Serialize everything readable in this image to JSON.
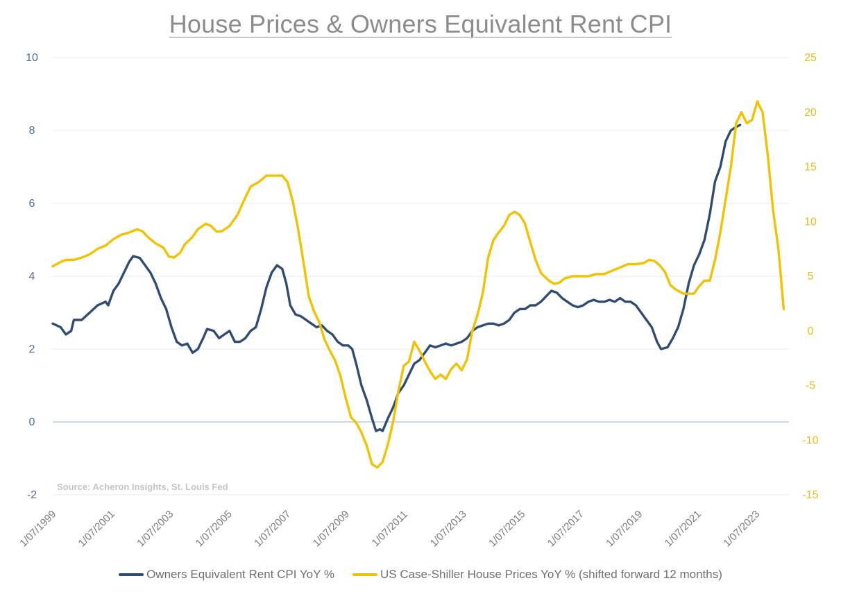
{
  "chart_data": {
    "type": "line",
    "title": "House Prices & Owners Equivalent Rent CPI",
    "source_note": "Source: Acheron Insights, St. Louis Fed",
    "x_range": [
      "1999-07-01",
      "2024-07-01"
    ],
    "x_tick_labels": [
      "1/07/1999",
      "1/07/2001",
      "1/07/2003",
      "1/07/2005",
      "1/07/2007",
      "1/07/2009",
      "1/07/2011",
      "1/07/2013",
      "1/07/2015",
      "1/07/2017",
      "1/07/2019",
      "1/07/2021",
      "1/07/2023"
    ],
    "y_left": {
      "range": [
        -2,
        10
      ],
      "ticks": [
        -2,
        0,
        2,
        4,
        6,
        8,
        10
      ]
    },
    "y_right": {
      "range": [
        -15,
        25
      ],
      "ticks": [
        -15,
        -10,
        -5,
        0,
        5,
        10,
        15,
        20,
        25
      ]
    },
    "grid": "horizontal",
    "legend_position": "bottom",
    "series": [
      {
        "name": "Owners Equivalent Rent CPI YoY %",
        "axis": "left",
        "color": "#2f4c73",
        "points": [
          [
            1999.5,
            2.7
          ],
          [
            1999.8,
            2.6
          ],
          [
            2000.0,
            2.4
          ],
          [
            2000.2,
            2.5
          ],
          [
            2000.3,
            2.8
          ],
          [
            2000.6,
            2.8
          ],
          [
            2000.9,
            3.0
          ],
          [
            2001.2,
            3.2
          ],
          [
            2001.5,
            3.3
          ],
          [
            2001.6,
            3.2
          ],
          [
            2001.8,
            3.6
          ],
          [
            2002.0,
            3.8
          ],
          [
            2002.2,
            4.1
          ],
          [
            2002.4,
            4.4
          ],
          [
            2002.55,
            4.55
          ],
          [
            2002.8,
            4.5
          ],
          [
            2003.0,
            4.3
          ],
          [
            2003.2,
            4.1
          ],
          [
            2003.4,
            3.8
          ],
          [
            2003.6,
            3.4
          ],
          [
            2003.8,
            3.1
          ],
          [
            2004.0,
            2.6
          ],
          [
            2004.2,
            2.2
          ],
          [
            2004.4,
            2.1
          ],
          [
            2004.6,
            2.15
          ],
          [
            2004.8,
            1.9
          ],
          [
            2005.0,
            2.0
          ],
          [
            2005.2,
            2.3
          ],
          [
            2005.35,
            2.55
          ],
          [
            2005.6,
            2.5
          ],
          [
            2005.8,
            2.3
          ],
          [
            2006.0,
            2.4
          ],
          [
            2006.2,
            2.5
          ],
          [
            2006.4,
            2.2
          ],
          [
            2006.6,
            2.2
          ],
          [
            2006.8,
            2.3
          ],
          [
            2007.0,
            2.5
          ],
          [
            2007.2,
            2.6
          ],
          [
            2007.4,
            3.1
          ],
          [
            2007.6,
            3.7
          ],
          [
            2007.8,
            4.1
          ],
          [
            2008.0,
            4.3
          ],
          [
            2008.2,
            4.2
          ],
          [
            2008.35,
            3.8
          ],
          [
            2008.5,
            3.2
          ],
          [
            2008.7,
            2.95
          ],
          [
            2008.9,
            2.9
          ],
          [
            2009.1,
            2.8
          ],
          [
            2009.3,
            2.7
          ],
          [
            2009.5,
            2.6
          ],
          [
            2009.7,
            2.65
          ],
          [
            2009.9,
            2.5
          ],
          [
            2010.1,
            2.4
          ],
          [
            2010.3,
            2.2
          ],
          [
            2010.5,
            2.1
          ],
          [
            2010.7,
            2.1
          ],
          [
            2010.85,
            2.0
          ],
          [
            2011.0,
            1.6
          ],
          [
            2011.2,
            1.0
          ],
          [
            2011.4,
            0.6
          ],
          [
            2011.6,
            0.1
          ],
          [
            2011.75,
            -0.25
          ],
          [
            2011.9,
            -0.2
          ],
          [
            2012.0,
            -0.25
          ],
          [
            2012.2,
            0.1
          ],
          [
            2012.4,
            0.4
          ],
          [
            2012.6,
            0.8
          ],
          [
            2012.8,
            1.0
          ],
          [
            2013.0,
            1.3
          ],
          [
            2013.2,
            1.6
          ],
          [
            2013.4,
            1.7
          ],
          [
            2013.6,
            1.9
          ],
          [
            2013.8,
            2.1
          ],
          [
            2014.0,
            2.05
          ],
          [
            2014.2,
            2.1
          ],
          [
            2014.4,
            2.15
          ],
          [
            2014.6,
            2.1
          ],
          [
            2014.8,
            2.15
          ],
          [
            2015.0,
            2.2
          ],
          [
            2015.2,
            2.3
          ],
          [
            2015.4,
            2.5
          ],
          [
            2015.6,
            2.6
          ],
          [
            2015.8,
            2.65
          ],
          [
            2016.0,
            2.7
          ],
          [
            2016.2,
            2.7
          ],
          [
            2016.4,
            2.65
          ],
          [
            2016.6,
            2.7
          ],
          [
            2016.8,
            2.8
          ],
          [
            2017.0,
            3.0
          ],
          [
            2017.2,
            3.1
          ],
          [
            2017.4,
            3.1
          ],
          [
            2017.6,
            3.2
          ],
          [
            2017.8,
            3.2
          ],
          [
            2018.0,
            3.3
          ],
          [
            2018.2,
            3.45
          ],
          [
            2018.4,
            3.6
          ],
          [
            2018.6,
            3.55
          ],
          [
            2018.8,
            3.4
          ],
          [
            2019.0,
            3.3
          ],
          [
            2019.2,
            3.2
          ],
          [
            2019.4,
            3.15
          ],
          [
            2019.6,
            3.2
          ],
          [
            2019.8,
            3.3
          ],
          [
            2020.0,
            3.35
          ],
          [
            2020.2,
            3.3
          ],
          [
            2020.4,
            3.3
          ],
          [
            2020.6,
            3.35
          ],
          [
            2020.8,
            3.3
          ],
          [
            2021.0,
            3.4
          ],
          [
            2021.2,
            3.3
          ],
          [
            2021.4,
            3.3
          ],
          [
            2021.6,
            3.2
          ],
          [
            2021.8,
            3.0
          ],
          [
            2022.0,
            2.8
          ],
          [
            2022.2,
            2.6
          ],
          [
            2022.4,
            2.2
          ],
          [
            2022.55,
            2.0
          ],
          [
            2022.8,
            2.05
          ],
          [
            2023.0,
            2.3
          ],
          [
            2023.2,
            2.6
          ],
          [
            2023.4,
            3.1
          ],
          [
            2023.6,
            3.8
          ],
          [
            2023.8,
            4.3
          ],
          [
            2024.0,
            4.6
          ],
          [
            2024.2,
            5.0
          ],
          [
            2024.4,
            5.7
          ],
          [
            2024.6,
            6.6
          ],
          [
            2024.8,
            7.0
          ],
          [
            2025.0,
            7.7
          ],
          [
            2025.2,
            8.0
          ],
          [
            2025.4,
            8.1
          ],
          [
            2025.55,
            8.15
          ]
        ]
      },
      {
        "name": "US Case-Shiller House Prices YoY % (shifted forward 12 months)",
        "axis": "right",
        "color": "#f2c200",
        "points": [
          [
            1999.5,
            5.9
          ],
          [
            1999.8,
            6.3
          ],
          [
            2000.0,
            6.5
          ],
          [
            2000.3,
            6.5
          ],
          [
            2000.6,
            6.7
          ],
          [
            2000.9,
            7.0
          ],
          [
            2001.2,
            7.5
          ],
          [
            2001.5,
            7.8
          ],
          [
            2001.8,
            8.4
          ],
          [
            2002.1,
            8.8
          ],
          [
            2002.4,
            9.0
          ],
          [
            2002.7,
            9.3
          ],
          [
            2002.9,
            9.1
          ],
          [
            2003.1,
            8.6
          ],
          [
            2003.4,
            8.0
          ],
          [
            2003.7,
            7.6
          ],
          [
            2003.9,
            6.8
          ],
          [
            2004.1,
            6.7
          ],
          [
            2004.35,
            7.2
          ],
          [
            2004.5,
            7.9
          ],
          [
            2004.8,
            8.6
          ],
          [
            2005.0,
            9.3
          ],
          [
            2005.3,
            9.8
          ],
          [
            2005.5,
            9.6
          ],
          [
            2005.7,
            9.1
          ],
          [
            2005.9,
            9.1
          ],
          [
            2006.2,
            9.6
          ],
          [
            2006.5,
            10.6
          ],
          [
            2006.8,
            12.2
          ],
          [
            2007.0,
            13.2
          ],
          [
            2007.3,
            13.6
          ],
          [
            2007.6,
            14.2
          ],
          [
            2007.9,
            14.2
          ],
          [
            2008.2,
            14.2
          ],
          [
            2008.4,
            13.6
          ],
          [
            2008.6,
            11.8
          ],
          [
            2008.8,
            9.3
          ],
          [
            2009.0,
            6.3
          ],
          [
            2009.2,
            3.2
          ],
          [
            2009.4,
            1.8
          ],
          [
            2009.6,
            0.8
          ],
          [
            2009.8,
            -0.8
          ],
          [
            2010.0,
            -1.8
          ],
          [
            2010.2,
            -2.7
          ],
          [
            2010.4,
            -4.1
          ],
          [
            2010.6,
            -6.1
          ],
          [
            2010.8,
            -7.9
          ],
          [
            2011.0,
            -8.4
          ],
          [
            2011.2,
            -9.3
          ],
          [
            2011.4,
            -10.5
          ],
          [
            2011.6,
            -12.2
          ],
          [
            2011.8,
            -12.5
          ],
          [
            2012.0,
            -12.0
          ],
          [
            2012.2,
            -10.4
          ],
          [
            2012.4,
            -8.3
          ],
          [
            2012.6,
            -5.5
          ],
          [
            2012.8,
            -3.2
          ],
          [
            2013.0,
            -2.8
          ],
          [
            2013.2,
            -1.0
          ],
          [
            2013.4,
            -1.8
          ],
          [
            2013.6,
            -2.8
          ],
          [
            2013.8,
            -3.7
          ],
          [
            2014.0,
            -4.4
          ],
          [
            2014.2,
            -4.0
          ],
          [
            2014.4,
            -4.4
          ],
          [
            2014.6,
            -3.5
          ],
          [
            2014.8,
            -3.0
          ],
          [
            2015.0,
            -3.6
          ],
          [
            2015.2,
            -2.6
          ],
          [
            2015.4,
            0.0
          ],
          [
            2015.6,
            1.5
          ],
          [
            2015.8,
            3.5
          ],
          [
            2016.0,
            6.7
          ],
          [
            2016.2,
            8.3
          ],
          [
            2016.4,
            9.0
          ],
          [
            2016.6,
            9.6
          ],
          [
            2016.8,
            10.6
          ],
          [
            2017.0,
            10.9
          ],
          [
            2017.2,
            10.6
          ],
          [
            2017.4,
            9.8
          ],
          [
            2017.6,
            8.1
          ],
          [
            2017.8,
            6.5
          ],
          [
            2018.0,
            5.3
          ],
          [
            2018.3,
            4.6
          ],
          [
            2018.5,
            4.3
          ],
          [
            2018.7,
            4.4
          ],
          [
            2018.9,
            4.8
          ],
          [
            2019.2,
            5.0
          ],
          [
            2019.5,
            5.0
          ],
          [
            2019.8,
            5.0
          ],
          [
            2020.1,
            5.2
          ],
          [
            2020.4,
            5.2
          ],
          [
            2020.7,
            5.5
          ],
          [
            2021.0,
            5.8
          ],
          [
            2021.3,
            6.1
          ],
          [
            2021.6,
            6.1
          ],
          [
            2021.9,
            6.2
          ],
          [
            2022.1,
            6.5
          ],
          [
            2022.3,
            6.4
          ],
          [
            2022.5,
            6.0
          ],
          [
            2022.7,
            5.4
          ],
          [
            2022.9,
            4.2
          ],
          [
            2023.1,
            3.8
          ],
          [
            2023.4,
            3.4
          ],
          [
            2023.6,
            3.4
          ],
          [
            2023.8,
            3.4
          ],
          [
            2024.0,
            4.1
          ],
          [
            2024.2,
            4.6
          ],
          [
            2024.4,
            4.6
          ],
          [
            2024.6,
            6.5
          ],
          [
            2024.8,
            9.0
          ],
          [
            2025.0,
            12.0
          ],
          [
            2025.2,
            15.0
          ],
          [
            2025.4,
            19.0
          ],
          [
            2025.6,
            20.0
          ],
          [
            2025.8,
            19.0
          ],
          [
            2026.0,
            19.3
          ],
          [
            2026.2,
            21.0
          ],
          [
            2026.4,
            20.0
          ],
          [
            2026.6,
            16.0
          ],
          [
            2026.8,
            11.0
          ],
          [
            2027.0,
            7.5
          ],
          [
            2027.2,
            2.0
          ]
        ]
      }
    ]
  }
}
